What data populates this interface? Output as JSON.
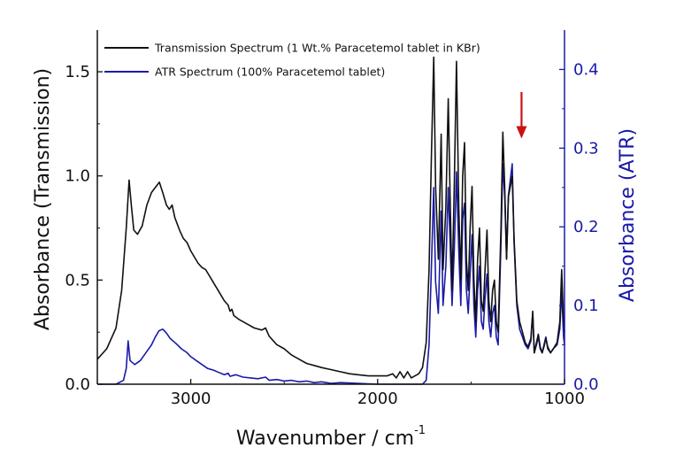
{
  "chart_data": {
    "type": "line",
    "xlabel": "Wavenumber / cm",
    "xlabel_superscript": "-1",
    "ylabel_left": "Absorbance (Transmission)",
    "ylabel_right": "Absorbance (ATR)",
    "x_reversed": true,
    "xlim": [
      3500,
      1000
    ],
    "ylim_left": [
      0,
      1.7
    ],
    "ylim_right": [
      0,
      0.45
    ],
    "x_ticks": [
      "3000",
      "2000",
      "1000"
    ],
    "y_left_ticks": [
      "0.0",
      "0.5",
      "1.0",
      "1.5"
    ],
    "y_right_ticks": [
      "0.0",
      "0.1",
      "0.2",
      "0.3",
      "0.4"
    ],
    "colors": {
      "transmission": "#111111",
      "atr": "#1a1aa8",
      "right_axis": "#1a1aa8",
      "arrow": "#cc1111"
    },
    "legend_position": "top-left",
    "arrow_annotation": {
      "x": 1230,
      "y_right": 0.31
    },
    "series": [
      {
        "name": "Transmission Spectrum (1 Wt.% Paracetemol tablet in KBr)",
        "axis": "left",
        "points": [
          [
            3500,
            0.12
          ],
          [
            3450,
            0.17
          ],
          [
            3400,
            0.27
          ],
          [
            3370,
            0.45
          ],
          [
            3345,
            0.75
          ],
          [
            3330,
            0.98
          ],
          [
            3318,
            0.86
          ],
          [
            3305,
            0.74
          ],
          [
            3285,
            0.72
          ],
          [
            3260,
            0.76
          ],
          [
            3235,
            0.86
          ],
          [
            3210,
            0.92
          ],
          [
            3185,
            0.95
          ],
          [
            3168,
            0.97
          ],
          [
            3150,
            0.92
          ],
          [
            3130,
            0.86
          ],
          [
            3115,
            0.84
          ],
          [
            3100,
            0.86
          ],
          [
            3085,
            0.8
          ],
          [
            3060,
            0.74
          ],
          [
            3040,
            0.7
          ],
          [
            3020,
            0.68
          ],
          [
            3000,
            0.64
          ],
          [
            2980,
            0.61
          ],
          [
            2960,
            0.58
          ],
          [
            2940,
            0.56
          ],
          [
            2920,
            0.55
          ],
          [
            2900,
            0.52
          ],
          [
            2880,
            0.49
          ],
          [
            2860,
            0.46
          ],
          [
            2840,
            0.43
          ],
          [
            2820,
            0.4
          ],
          [
            2800,
            0.38
          ],
          [
            2790,
            0.35
          ],
          [
            2780,
            0.36
          ],
          [
            2770,
            0.33
          ],
          [
            2740,
            0.31
          ],
          [
            2700,
            0.29
          ],
          [
            2660,
            0.27
          ],
          [
            2620,
            0.26
          ],
          [
            2600,
            0.27
          ],
          [
            2580,
            0.23
          ],
          [
            2540,
            0.19
          ],
          [
            2500,
            0.17
          ],
          [
            2460,
            0.14
          ],
          [
            2420,
            0.12
          ],
          [
            2380,
            0.1
          ],
          [
            2340,
            0.09
          ],
          [
            2300,
            0.08
          ],
          [
            2250,
            0.07
          ],
          [
            2200,
            0.06
          ],
          [
            2150,
            0.05
          ],
          [
            2100,
            0.045
          ],
          [
            2050,
            0.04
          ],
          [
            2000,
            0.04
          ],
          [
            1950,
            0.04
          ],
          [
            1920,
            0.05
          ],
          [
            1900,
            0.03
          ],
          [
            1880,
            0.06
          ],
          [
            1860,
            0.03
          ],
          [
            1840,
            0.06
          ],
          [
            1820,
            0.03
          ],
          [
            1800,
            0.04
          ],
          [
            1780,
            0.05
          ],
          [
            1760,
            0.08
          ],
          [
            1740,
            0.2
          ],
          [
            1725,
            0.55
          ],
          [
            1712,
            1.1
          ],
          [
            1700,
            1.57
          ],
          [
            1690,
            0.95
          ],
          [
            1675,
            0.6
          ],
          [
            1660,
            1.2
          ],
          [
            1650,
            0.55
          ],
          [
            1635,
            0.85
          ],
          [
            1622,
            1.37
          ],
          [
            1612,
            0.9
          ],
          [
            1602,
            0.45
          ],
          [
            1590,
            0.95
          ],
          [
            1578,
            1.55
          ],
          [
            1566,
            0.85
          ],
          [
            1555,
            0.5
          ],
          [
            1545,
            1.0
          ],
          [
            1535,
            1.16
          ],
          [
            1525,
            0.6
          ],
          [
            1515,
            0.45
          ],
          [
            1505,
            0.75
          ],
          [
            1495,
            0.95
          ],
          [
            1485,
            0.5
          ],
          [
            1475,
            0.3
          ],
          [
            1465,
            0.6
          ],
          [
            1455,
            0.75
          ],
          [
            1445,
            0.4
          ],
          [
            1435,
            0.35
          ],
          [
            1425,
            0.55
          ],
          [
            1415,
            0.74
          ],
          [
            1405,
            0.4
          ],
          [
            1395,
            0.3
          ],
          [
            1385,
            0.45
          ],
          [
            1375,
            0.5
          ],
          [
            1365,
            0.3
          ],
          [
            1355,
            0.25
          ],
          [
            1340,
            0.75
          ],
          [
            1330,
            1.21
          ],
          [
            1320,
            0.95
          ],
          [
            1310,
            0.6
          ],
          [
            1300,
            0.9
          ],
          [
            1290,
            0.95
          ],
          [
            1280,
            1.0
          ],
          [
            1270,
            0.7
          ],
          [
            1255,
            0.4
          ],
          [
            1240,
            0.3
          ],
          [
            1225,
            0.25
          ],
          [
            1210,
            0.2
          ],
          [
            1195,
            0.18
          ],
          [
            1180,
            0.22
          ],
          [
            1170,
            0.35
          ],
          [
            1162,
            0.15
          ],
          [
            1150,
            0.2
          ],
          [
            1140,
            0.24
          ],
          [
            1130,
            0.18
          ],
          [
            1120,
            0.15
          ],
          [
            1110,
            0.18
          ],
          [
            1100,
            0.22
          ],
          [
            1090,
            0.18
          ],
          [
            1075,
            0.15
          ],
          [
            1060,
            0.17
          ],
          [
            1040,
            0.2
          ],
          [
            1025,
            0.3
          ],
          [
            1015,
            0.55
          ],
          [
            1005,
            0.3
          ],
          [
            1000,
            0.25
          ]
        ]
      },
      {
        "name": "ATR Spectrum  (100% Paracetemol tablet)",
        "axis": "right",
        "points": [
          [
            3500,
            0.0
          ],
          [
            3400,
            0.0
          ],
          [
            3360,
            0.005
          ],
          [
            3345,
            0.02
          ],
          [
            3335,
            0.055
          ],
          [
            3325,
            0.03
          ],
          [
            3300,
            0.025
          ],
          [
            3270,
            0.03
          ],
          [
            3240,
            0.04
          ],
          [
            3210,
            0.05
          ],
          [
            3190,
            0.06
          ],
          [
            3170,
            0.068
          ],
          [
            3150,
            0.07
          ],
          [
            3130,
            0.065
          ],
          [
            3110,
            0.058
          ],
          [
            3080,
            0.052
          ],
          [
            3050,
            0.045
          ],
          [
            3020,
            0.04
          ],
          [
            3000,
            0.035
          ],
          [
            2970,
            0.03
          ],
          [
            2940,
            0.025
          ],
          [
            2910,
            0.02
          ],
          [
            2880,
            0.018
          ],
          [
            2850,
            0.015
          ],
          [
            2820,
            0.012
          ],
          [
            2800,
            0.014
          ],
          [
            2790,
            0.01
          ],
          [
            2760,
            0.012
          ],
          [
            2720,
            0.009
          ],
          [
            2680,
            0.008
          ],
          [
            2640,
            0.007
          ],
          [
            2600,
            0.009
          ],
          [
            2580,
            0.005
          ],
          [
            2540,
            0.006
          ],
          [
            2500,
            0.004
          ],
          [
            2460,
            0.005
          ],
          [
            2420,
            0.003
          ],
          [
            2380,
            0.004
          ],
          [
            2340,
            0.002
          ],
          [
            2300,
            0.003
          ],
          [
            2250,
            0.001
          ],
          [
            2200,
            0.002
          ],
          [
            2000,
            0.0
          ],
          [
            1800,
            0.0
          ],
          [
            1760,
            0.0
          ],
          [
            1740,
            0.005
          ],
          [
            1725,
            0.05
          ],
          [
            1712,
            0.15
          ],
          [
            1700,
            0.25
          ],
          [
            1690,
            0.13
          ],
          [
            1675,
            0.09
          ],
          [
            1660,
            0.22
          ],
          [
            1650,
            0.1
          ],
          [
            1635,
            0.15
          ],
          [
            1622,
            0.25
          ],
          [
            1612,
            0.18
          ],
          [
            1602,
            0.1
          ],
          [
            1590,
            0.17
          ],
          [
            1578,
            0.27
          ],
          [
            1566,
            0.17
          ],
          [
            1555,
            0.1
          ],
          [
            1545,
            0.21
          ],
          [
            1535,
            0.23
          ],
          [
            1525,
            0.12
          ],
          [
            1515,
            0.09
          ],
          [
            1505,
            0.14
          ],
          [
            1495,
            0.19
          ],
          [
            1485,
            0.1
          ],
          [
            1475,
            0.06
          ],
          [
            1465,
            0.12
          ],
          [
            1455,
            0.15
          ],
          [
            1445,
            0.08
          ],
          [
            1435,
            0.07
          ],
          [
            1425,
            0.11
          ],
          [
            1415,
            0.14
          ],
          [
            1405,
            0.08
          ],
          [
            1395,
            0.06
          ],
          [
            1385,
            0.09
          ],
          [
            1375,
            0.1
          ],
          [
            1365,
            0.06
          ],
          [
            1355,
            0.05
          ],
          [
            1340,
            0.18
          ],
          [
            1330,
            0.28
          ],
          [
            1320,
            0.24
          ],
          [
            1310,
            0.16
          ],
          [
            1300,
            0.24
          ],
          [
            1290,
            0.26
          ],
          [
            1280,
            0.28
          ],
          [
            1270,
            0.18
          ],
          [
            1255,
            0.1
          ],
          [
            1240,
            0.07
          ],
          [
            1225,
            0.06
          ],
          [
            1210,
            0.05
          ],
          [
            1195,
            0.045
          ],
          [
            1180,
            0.055
          ],
          [
            1170,
            0.09
          ],
          [
            1162,
            0.04
          ],
          [
            1150,
            0.05
          ],
          [
            1140,
            0.06
          ],
          [
            1130,
            0.045
          ],
          [
            1120,
            0.04
          ],
          [
            1110,
            0.05
          ],
          [
            1100,
            0.06
          ],
          [
            1090,
            0.045
          ],
          [
            1075,
            0.04
          ],
          [
            1060,
            0.045
          ],
          [
            1040,
            0.05
          ],
          [
            1025,
            0.07
          ],
          [
            1015,
            0.12
          ],
          [
            1005,
            0.06
          ],
          [
            1000,
            0.05
          ]
        ]
      }
    ]
  }
}
